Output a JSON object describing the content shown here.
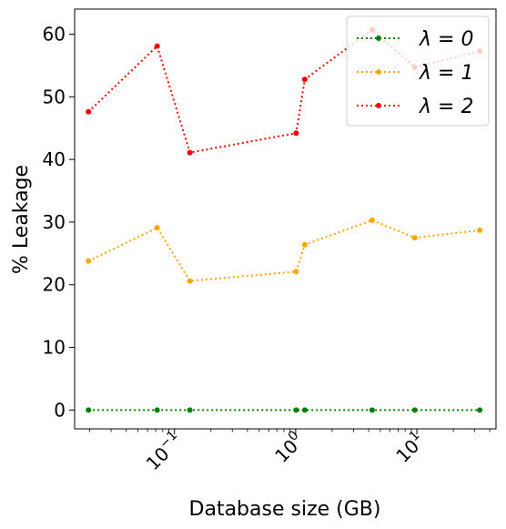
{
  "chart_data": {
    "type": "line",
    "xscale": "log",
    "xlabel": "Database size (GB)",
    "ylabel": "% Leakage",
    "xlim": [
      0.015,
      45
    ],
    "ylim": [
      -3,
      64
    ],
    "yticks": [
      0,
      10,
      20,
      30,
      40,
      50,
      60
    ],
    "xticks": [
      {
        "value": 0.1,
        "base": "10",
        "exp": "−1"
      },
      {
        "value": 1,
        "base": "10",
        "exp": "0"
      },
      {
        "value": 10,
        "base": "10",
        "exp": "1"
      }
    ],
    "grid": false,
    "legend_position": "top-right",
    "series": [
      {
        "name": "λ = 0",
        "color": "#008000",
        "x": [
          0.0195,
          0.072,
          0.134,
          1.01,
          1.19,
          4.28,
          9.62,
          33.1
        ],
        "y": [
          0,
          0,
          0,
          0,
          0,
          0,
          0,
          0
        ]
      },
      {
        "name": "λ = 1",
        "color": "#FFA500",
        "x": [
          0.0195,
          0.072,
          0.134,
          1.01,
          1.19,
          4.28,
          9.62,
          33.1
        ],
        "y": [
          23.8,
          29.1,
          20.6,
          22.1,
          26.4,
          30.3,
          27.5,
          28.7
        ]
      },
      {
        "name": "λ = 2",
        "color": "#FF0000",
        "x": [
          0.0195,
          0.072,
          0.134,
          1.01,
          1.19,
          4.28,
          9.62,
          33.1
        ],
        "y": [
          47.6,
          58.1,
          41.1,
          44.2,
          52.8,
          60.7,
          54.7,
          57.3
        ]
      }
    ]
  }
}
